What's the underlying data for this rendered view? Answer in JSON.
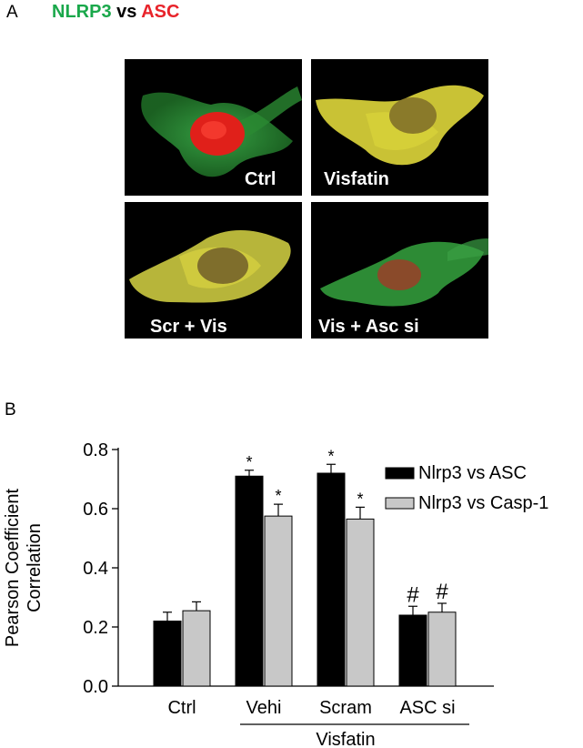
{
  "figure": {
    "panel_a_label": "A",
    "panel_b_label": "B",
    "title_part1": "NLRP3",
    "title_part2": "vs",
    "title_part3": "ASC",
    "colors": {
      "green": "#1aa84b",
      "red": "#e8232a"
    }
  },
  "micrographs": [
    {
      "label": "Ctrl"
    },
    {
      "label": "Visfatin"
    },
    {
      "label": "Scr + Vis"
    },
    {
      "label": "Vis + Asc si"
    }
  ],
  "chart_data": {
    "type": "bar",
    "ylabel_line1": "Pearson Coefficient",
    "ylabel_line2": "Correlation",
    "ylim": [
      0,
      0.8
    ],
    "yticks": [
      "0.0",
      "0.2",
      "0.4",
      "0.6",
      "0.8"
    ],
    "categories": [
      "Ctrl",
      "Vehi",
      "Scram",
      "ASC si"
    ],
    "group_label": "Visfatin",
    "legend_position": "top-right",
    "series": [
      {
        "name": "Nlrp3 vs ASC",
        "color": "#000000",
        "values": [
          0.22,
          0.71,
          0.72,
          0.24
        ],
        "errors": [
          0.03,
          0.02,
          0.03,
          0.03
        ],
        "annotations": [
          "",
          "*",
          "*",
          "#"
        ]
      },
      {
        "name": "Nlrp3 vs Casp-1",
        "color": "#c8c8c8",
        "values": [
          0.255,
          0.575,
          0.565,
          0.25
        ],
        "errors": [
          0.03,
          0.04,
          0.04,
          0.03
        ],
        "annotations": [
          "",
          "*",
          "*",
          "#"
        ]
      }
    ]
  }
}
